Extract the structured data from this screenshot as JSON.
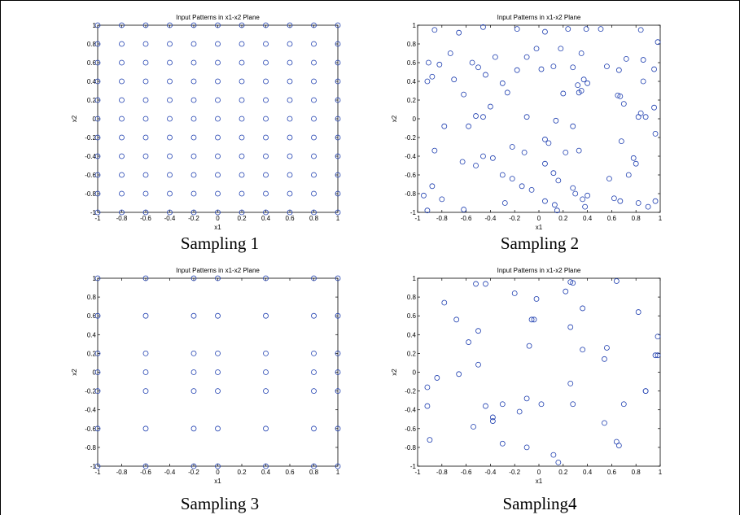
{
  "chart_data": [
    {
      "type": "scatter",
      "caption": "Sampling 1",
      "title": "Input Patterns in x1-x2 Plane",
      "xlabel": "x1",
      "ylabel": "x2",
      "xlim": [
        -1,
        1
      ],
      "ylim": [
        -1,
        1
      ],
      "xticks": [
        -1,
        -0.8,
        -0.6,
        -0.4,
        -0.2,
        0,
        0.2,
        0.4,
        0.6,
        0.8,
        1
      ],
      "yticks": [
        -1,
        -0.8,
        -0.6,
        -0.4,
        -0.2,
        0,
        0.2,
        0.4,
        0.6,
        0.8,
        1
      ],
      "xtick_labels": [
        "-1",
        "-0.8",
        "-0.6",
        "-0.4",
        "-0.2",
        "0",
        "0.2",
        "0.4",
        "0.6",
        "0.8",
        "1"
      ],
      "ytick_labels": [
        "-1",
        "-0.8",
        "-0.6",
        "-0.4",
        "-0.2",
        "0",
        "0.2",
        "0.4",
        "0.6",
        "0.8",
        "1"
      ],
      "grid": false,
      "marker_color": "#1f3fb0",
      "grid_levels": [
        -1,
        -0.8,
        -0.6,
        -0.4,
        -0.2,
        0,
        0.2,
        0.4,
        0.6,
        0.8,
        1
      ]
    },
    {
      "type": "scatter",
      "caption": "Sampling 2",
      "title": "Input Patterns in x1-x2 Plane",
      "xlabel": "x1",
      "ylabel": "x2",
      "xlim": [
        -1,
        1
      ],
      "ylim": [
        -1,
        1
      ],
      "xticks": [
        -1,
        -0.8,
        -0.6,
        -0.4,
        -0.2,
        0,
        0.2,
        0.4,
        0.6,
        0.8,
        1
      ],
      "yticks": [
        -1,
        -0.8,
        -0.6,
        -0.4,
        -0.2,
        0,
        0.2,
        0.4,
        0.6,
        0.8,
        1
      ],
      "xtick_labels": [
        "-1",
        "-0.8",
        "-0.6",
        "-0.4",
        "-0.2",
        "0",
        "0.2",
        "0.4",
        "0.6",
        "0.8",
        "1"
      ],
      "ytick_labels": [
        "-1",
        "-0.8",
        "-0.6",
        "-0.4",
        "-0.2",
        "0",
        "0.2",
        "0.4",
        "0.6",
        "0.8",
        "1"
      ],
      "grid": false,
      "marker_color": "#1f3fb0",
      "points": [
        [
          -0.86,
          0.95
        ],
        [
          -0.66,
          0.92
        ],
        [
          -0.46,
          0.98
        ],
        [
          -0.18,
          0.96
        ],
        [
          0.05,
          0.93
        ],
        [
          0.24,
          0.96
        ],
        [
          0.39,
          0.96
        ],
        [
          0.51,
          0.96
        ],
        [
          0.84,
          0.95
        ],
        [
          -0.91,
          0.6
        ],
        [
          -0.82,
          0.58
        ],
        [
          -0.73,
          0.7
        ],
        [
          -0.55,
          0.6
        ],
        [
          -0.36,
          0.66
        ],
        [
          -0.1,
          0.66
        ],
        [
          -0.02,
          0.75
        ],
        [
          0.18,
          0.75
        ],
        [
          0.35,
          0.7
        ],
        [
          0.56,
          0.56
        ],
        [
          0.72,
          0.64
        ],
        [
          0.86,
          0.63
        ],
        [
          0.98,
          0.82
        ],
        [
          -0.92,
          0.4
        ],
        [
          -0.88,
          0.45
        ],
        [
          -0.7,
          0.42
        ],
        [
          -0.5,
          0.55
        ],
        [
          -0.44,
          0.47
        ],
        [
          -0.3,
          0.38
        ],
        [
          -0.18,
          0.52
        ],
        [
          0.02,
          0.53
        ],
        [
          0.12,
          0.56
        ],
        [
          0.28,
          0.55
        ],
        [
          0.32,
          0.36
        ],
        [
          0.37,
          0.42
        ],
        [
          0.4,
          0.38
        ],
        [
          0.66,
          0.52
        ],
        [
          0.86,
          0.4
        ],
        [
          0.95,
          0.53
        ],
        [
          -0.62,
          0.26
        ],
        [
          -0.52,
          0.03
        ],
        [
          -0.4,
          0.13
        ],
        [
          -0.26,
          0.28
        ],
        [
          0.2,
          0.27
        ],
        [
          0.33,
          0.28
        ],
        [
          0.35,
          0.3
        ],
        [
          0.65,
          0.25
        ],
        [
          0.67,
          0.24
        ],
        [
          0.7,
          0.16
        ],
        [
          0.84,
          0.06
        ],
        [
          0.88,
          0.02
        ],
        [
          0.95,
          0.12
        ],
        [
          -0.78,
          -0.08
        ],
        [
          -0.58,
          -0.08
        ],
        [
          -0.46,
          0.02
        ],
        [
          -0.1,
          0.02
        ],
        [
          0.14,
          -0.02
        ],
        [
          0.28,
          -0.08
        ],
        [
          0.82,
          0.02
        ],
        [
          0.96,
          -0.16
        ],
        [
          -0.86,
          -0.34
        ],
        [
          -0.63,
          -0.46
        ],
        [
          -0.46,
          -0.4
        ],
        [
          -0.38,
          -0.42
        ],
        [
          -0.22,
          -0.3
        ],
        [
          -0.12,
          -0.36
        ],
        [
          0.05,
          -0.22
        ],
        [
          0.08,
          -0.26
        ],
        [
          0.22,
          -0.36
        ],
        [
          0.33,
          -0.34
        ],
        [
          0.68,
          -0.24
        ],
        [
          0.78,
          -0.42
        ],
        [
          0.8,
          -0.48
        ],
        [
          -0.95,
          -0.82
        ],
        [
          -0.88,
          -0.72
        ],
        [
          -0.8,
          -0.86
        ],
        [
          -0.52,
          -0.5
        ],
        [
          -0.3,
          -0.6
        ],
        [
          -0.22,
          -0.64
        ],
        [
          -0.14,
          -0.72
        ],
        [
          -0.06,
          -0.76
        ],
        [
          0.05,
          -0.48
        ],
        [
          0.12,
          -0.58
        ],
        [
          0.16,
          -0.66
        ],
        [
          0.28,
          -0.74
        ],
        [
          0.3,
          -0.8
        ],
        [
          0.36,
          -0.86
        ],
        [
          0.4,
          -0.82
        ],
        [
          0.58,
          -0.64
        ],
        [
          0.62,
          -0.85
        ],
        [
          0.67,
          -0.88
        ],
        [
          0.74,
          -0.6
        ],
        [
          -0.92,
          -0.98
        ],
        [
          -0.62,
          -0.97
        ],
        [
          -0.28,
          -0.9
        ],
        [
          0.05,
          -0.88
        ],
        [
          0.13,
          -0.92
        ],
        [
          0.15,
          -0.98
        ],
        [
          0.38,
          -0.94
        ],
        [
          0.82,
          -0.9
        ],
        [
          0.9,
          -0.94
        ],
        [
          0.96,
          -0.88
        ]
      ]
    },
    {
      "type": "scatter",
      "caption": "Sampling 3",
      "title": "Input Patterns in x1-x2 Plane",
      "xlabel": "x1",
      "ylabel": "x2",
      "xlim": [
        -1,
        1
      ],
      "ylim": [
        -1,
        1
      ],
      "xticks": [
        -1,
        -0.8,
        -0.6,
        -0.4,
        -0.2,
        0,
        0.2,
        0.4,
        0.6,
        0.8,
        1
      ],
      "yticks": [
        -1,
        -0.8,
        -0.6,
        -0.4,
        -0.2,
        0,
        0.2,
        0.4,
        0.6,
        0.8,
        1
      ],
      "xtick_labels": [
        "-1",
        "-0.8",
        "-0.6",
        "-0.4",
        "-0.2",
        "0",
        "0.2",
        "0.4",
        "0.6",
        "0.8",
        "1"
      ],
      "ytick_labels": [
        "-1",
        "-0.8",
        "-0.6",
        "-0.4",
        "-0.2",
        "0",
        "0.2",
        "0.4",
        "0.6",
        "0.8",
        "1"
      ],
      "grid": false,
      "marker_color": "#1f3fb0",
      "grid_levels": [
        -1,
        -0.6,
        -0.2,
        0,
        0.4,
        0.8,
        1
      ],
      "grid_levels_y": [
        -1,
        -0.6,
        -0.2,
        0,
        0.2,
        0.6,
        1
      ]
    },
    {
      "type": "scatter",
      "caption": "Sampling4",
      "title": "Input Patterns in x1-x2 Plane",
      "xlabel": "x1",
      "ylabel": "x2",
      "xlim": [
        -1,
        1
      ],
      "ylim": [
        -1,
        1
      ],
      "xticks": [
        -1,
        -0.8,
        -0.6,
        -0.4,
        -0.2,
        0,
        0.2,
        0.4,
        0.6,
        0.8,
        1
      ],
      "yticks": [
        -1,
        -0.8,
        -0.6,
        -0.4,
        -0.2,
        0,
        0.2,
        0.4,
        0.6,
        0.8,
        1
      ],
      "xtick_labels": [
        "-1",
        "-0.8",
        "-0.6",
        "-0.4",
        "-0.2",
        "0",
        "0.2",
        "0.4",
        "0.6",
        "0.8",
        "1"
      ],
      "ytick_labels": [
        "-1",
        "-0.8",
        "-0.6",
        "-0.4",
        "-0.2",
        "0",
        "0.2",
        "0.4",
        "0.6",
        "0.8",
        "1"
      ],
      "grid": false,
      "marker_color": "#1f3fb0",
      "points": [
        [
          -0.52,
          0.94
        ],
        [
          -0.44,
          0.94
        ],
        [
          0.26,
          0.96
        ],
        [
          0.28,
          0.95
        ],
        [
          0.64,
          0.97
        ],
        [
          0.22,
          0.86
        ],
        [
          -0.2,
          0.84
        ],
        [
          -0.78,
          0.74
        ],
        [
          -0.02,
          0.78
        ],
        [
          0.36,
          0.68
        ],
        [
          0.82,
          0.64
        ],
        [
          -0.68,
          0.56
        ],
        [
          -0.06,
          0.56
        ],
        [
          -0.04,
          0.56
        ],
        [
          -0.5,
          0.44
        ],
        [
          0.26,
          0.48
        ],
        [
          -0.58,
          0.32
        ],
        [
          -0.08,
          0.28
        ],
        [
          0.36,
          0.24
        ],
        [
          0.56,
          0.26
        ],
        [
          0.98,
          0.38
        ],
        [
          0.54,
          0.14
        ],
        [
          0.96,
          0.18
        ],
        [
          0.98,
          0.18
        ],
        [
          -0.5,
          0.08
        ],
        [
          -0.66,
          -0.02
        ],
        [
          0.26,
          -0.12
        ],
        [
          -0.84,
          -0.06
        ],
        [
          -0.92,
          -0.16
        ],
        [
          0.88,
          -0.2
        ],
        [
          0.88,
          -0.2
        ],
        [
          -0.1,
          -0.28
        ],
        [
          -0.3,
          -0.34
        ],
        [
          -0.44,
          -0.36
        ],
        [
          0.02,
          -0.34
        ],
        [
          0.28,
          -0.34
        ],
        [
          0.7,
          -0.34
        ],
        [
          -0.92,
          -0.36
        ],
        [
          -0.16,
          -0.42
        ],
        [
          -0.38,
          -0.48
        ],
        [
          -0.38,
          -0.52
        ],
        [
          -0.54,
          -0.58
        ],
        [
          0.54,
          -0.54
        ],
        [
          -0.9,
          -0.72
        ],
        [
          -0.3,
          -0.76
        ],
        [
          -0.1,
          -0.8
        ],
        [
          0.64,
          -0.74
        ],
        [
          0.66,
          -0.78
        ],
        [
          0.12,
          -0.88
        ],
        [
          0.16,
          -0.96
        ]
      ]
    }
  ]
}
